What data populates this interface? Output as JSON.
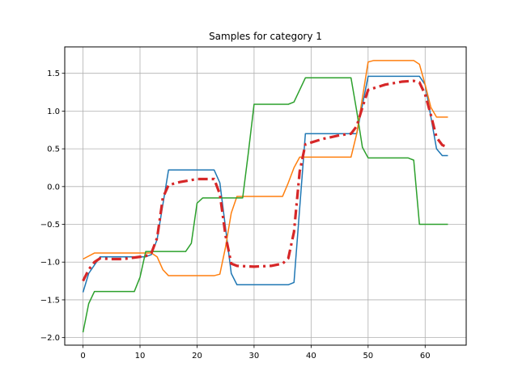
{
  "chart_data": {
    "type": "line",
    "title": "Samples for category 1",
    "xlabel": "",
    "ylabel": "",
    "xlim": [
      -3.2,
      67.2
    ],
    "ylim": [
      -2.1,
      1.85
    ],
    "xticks": [
      0,
      10,
      20,
      30,
      40,
      50,
      60
    ],
    "yticks": [
      -2.0,
      -1.5,
      -1.0,
      -0.5,
      0.0,
      0.5,
      1.0,
      1.5
    ],
    "grid": true,
    "series": [
      {
        "color": "#1f77b4",
        "style": "solid",
        "x": [
          0,
          1,
          3,
          11,
          12,
          13,
          15,
          23,
          24,
          26,
          27,
          36,
          37,
          39,
          48,
          50,
          59,
          60,
          62,
          63,
          64
        ],
        "y": [
          -1.4,
          -1.15,
          -0.93,
          -0.93,
          -0.9,
          -0.7,
          0.22,
          0.22,
          0.05,
          -1.15,
          -1.3,
          -1.3,
          -1.27,
          0.7,
          0.7,
          1.46,
          1.46,
          1.35,
          0.5,
          0.41,
          0.41
        ]
      },
      {
        "color": "#ff7f0e",
        "style": "solid",
        "x": [
          0,
          2,
          12,
          13,
          14,
          15,
          23,
          24,
          25,
          26,
          27,
          35,
          36,
          37,
          38,
          47,
          48,
          50,
          51,
          58,
          59,
          60,
          61,
          62,
          64
        ],
        "y": [
          -0.96,
          -0.88,
          -0.88,
          -0.93,
          -1.1,
          -1.18,
          -1.18,
          -1.16,
          -0.8,
          -0.35,
          -0.13,
          -0.13,
          0.05,
          0.25,
          0.39,
          0.39,
          0.7,
          1.65,
          1.67,
          1.67,
          1.62,
          1.35,
          1.05,
          0.92,
          0.92
        ]
      },
      {
        "color": "#2ca02c",
        "style": "solid",
        "x": [
          0,
          1,
          2,
          9,
          10,
          11,
          18,
          19,
          20,
          21,
          27,
          28,
          29,
          30,
          36,
          37,
          39,
          47,
          48,
          49,
          50,
          57,
          58,
          59,
          64
        ],
        "y": [
          -1.93,
          -1.55,
          -1.39,
          -1.39,
          -1.2,
          -0.86,
          -0.86,
          -0.75,
          -0.22,
          -0.15,
          -0.15,
          -0.15,
          0.45,
          1.09,
          1.09,
          1.12,
          1.44,
          1.44,
          1.0,
          0.52,
          0.38,
          0.38,
          0.35,
          -0.5,
          -0.5
        ]
      },
      {
        "color": "#d62728",
        "style": "dashdot",
        "x": [
          0,
          1,
          2,
          3,
          5,
          7,
          9,
          11,
          12,
          13,
          14,
          15,
          17,
          20,
          23,
          24,
          25,
          26,
          27,
          30,
          33,
          35,
          36,
          37,
          38,
          39,
          42,
          45,
          47,
          48,
          49,
          50,
          53,
          56,
          58,
          59,
          60,
          61,
          62,
          63,
          64
        ],
        "y": [
          -1.25,
          -1.1,
          -1.0,
          -0.95,
          -0.96,
          -0.96,
          -0.94,
          -0.92,
          -0.88,
          -0.68,
          -0.15,
          0.02,
          0.06,
          0.1,
          0.1,
          -0.1,
          -0.65,
          -1.02,
          -1.05,
          -1.06,
          -1.05,
          -1.02,
          -0.95,
          -0.6,
          0.2,
          0.56,
          0.63,
          0.68,
          0.7,
          0.8,
          1.05,
          1.28,
          1.35,
          1.39,
          1.4,
          1.38,
          1.22,
          0.95,
          0.65,
          0.55,
          0.52
        ]
      }
    ]
  }
}
